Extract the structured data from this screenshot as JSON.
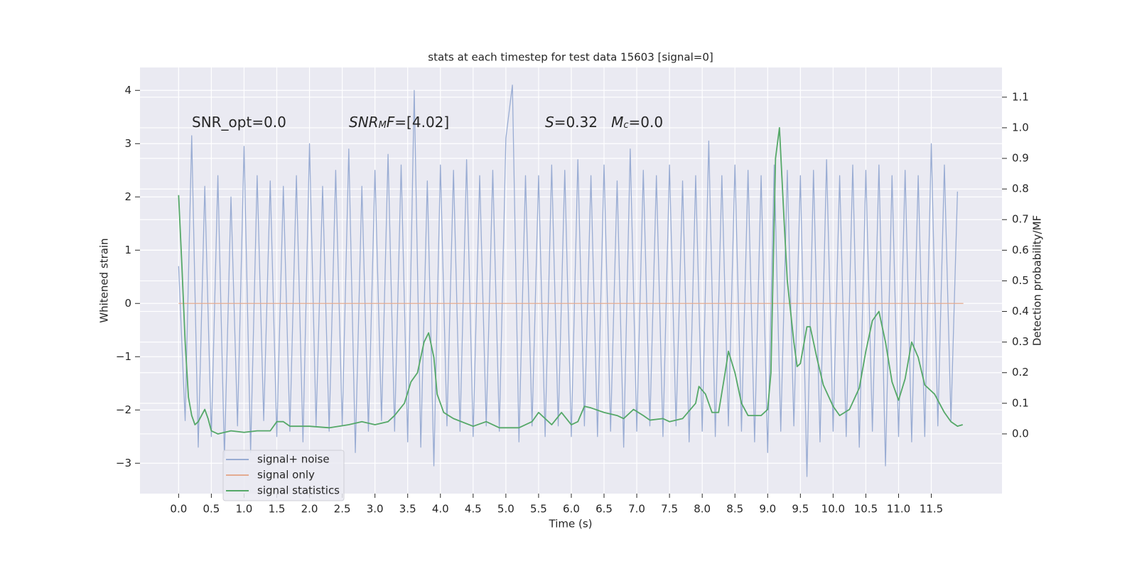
{
  "chart_data": {
    "type": "line",
    "title": "stats at each timestep for test data 15603 [signal=0]",
    "xlabel": "Time (s)",
    "ylabel": "Whitened strain",
    "y2label": "Detection probability/MF",
    "background": "#eaeaf2",
    "grid": true,
    "legend": "lower left",
    "xlim": [
      -0.59,
      12.58
    ],
    "ylim": [
      -3.57,
      4.43
    ],
    "y2lim": [
      -0.195,
      1.197
    ],
    "xticks": [
      {
        "value": 0,
        "label": "0.0"
      },
      {
        "value": 0.5,
        "label": "0.5"
      },
      {
        "value": 1,
        "label": "1.0"
      },
      {
        "value": 1.5,
        "label": "1.5"
      },
      {
        "value": 2,
        "label": "2.0"
      },
      {
        "value": 2.5,
        "label": "2.5"
      },
      {
        "value": 3,
        "label": "3.0"
      },
      {
        "value": 3.5,
        "label": "3.5"
      },
      {
        "value": 4,
        "label": "4.0"
      },
      {
        "value": 4.5,
        "label": "4.5"
      },
      {
        "value": 5,
        "label": "5.0"
      },
      {
        "value": 5.5,
        "label": "5.5"
      },
      {
        "value": 6,
        "label": "6.0"
      },
      {
        "value": 6.5,
        "label": "6.5"
      },
      {
        "value": 7,
        "label": "7.0"
      },
      {
        "value": 7.5,
        "label": "7.5"
      },
      {
        "value": 8,
        "label": "8.0"
      },
      {
        "value": 8.5,
        "label": "8.5"
      },
      {
        "value": 9,
        "label": "9.0"
      },
      {
        "value": 9.5,
        "label": "9.5"
      },
      {
        "value": 10,
        "label": "10.0"
      },
      {
        "value": 10.5,
        "label": "10.5"
      },
      {
        "value": 11,
        "label": "11.0"
      },
      {
        "value": 11.5,
        "label": "11.5"
      }
    ],
    "yticks": [
      {
        "value": -3,
        "label": "−3"
      },
      {
        "value": -2,
        "label": "−2"
      },
      {
        "value": -1,
        "label": "−1"
      },
      0,
      1,
      2,
      3,
      4
    ],
    "y2ticks": [
      {
        "value": 0,
        "label": "0.0"
      },
      {
        "value": 0.1,
        "label": "0.1"
      },
      {
        "value": 0.2,
        "label": "0.2"
      },
      {
        "value": 0.3,
        "label": "0.3"
      },
      {
        "value": 0.4,
        "label": "0.4"
      },
      {
        "value": 0.5,
        "label": "0.5"
      },
      {
        "value": 0.6,
        "label": "0.6"
      },
      {
        "value": 0.7,
        "label": "0.7"
      },
      {
        "value": 0.8,
        "label": "0.8"
      },
      {
        "value": 0.9,
        "label": "0.9"
      },
      {
        "value": 1,
        "label": "1.0"
      },
      {
        "value": 1.1,
        "label": "1.1"
      }
    ],
    "annotations": [
      {
        "segments": [
          {
            "text": "SNR_opt=0.0",
            "style": "normal"
          }
        ]
      },
      {
        "segments": [
          {
            "text": "SNR",
            "style": "italic"
          },
          {
            "text": "M",
            "style": "sub"
          },
          {
            "text": "F",
            "style": "italic"
          },
          {
            "text": "=[4.02]",
            "style": "normal"
          }
        ]
      },
      {
        "segments": [
          {
            "text": "S",
            "style": "italic"
          },
          {
            "text": "=0.32   ",
            "style": "normal"
          },
          {
            "text": "M",
            "style": "italic"
          },
          {
            "text": "c",
            "style": "sub"
          },
          {
            "text": "=0.0",
            "style": "normal"
          }
        ]
      }
    ],
    "series": [
      {
        "name": "signal+ noise",
        "color": "#99acd3",
        "axis": "y",
        "x": [
          0.0,
          0.1,
          0.2,
          0.3,
          0.4,
          0.5,
          0.6,
          0.7,
          0.8,
          0.9,
          1.0,
          1.1,
          1.2,
          1.3,
          1.4,
          1.5,
          1.6,
          1.7,
          1.8,
          1.9,
          2.0,
          2.1,
          2.2,
          2.3,
          2.4,
          2.5,
          2.6,
          2.7,
          2.8,
          2.9,
          3.0,
          3.1,
          3.2,
          3.3,
          3.4,
          3.5,
          3.6,
          3.7,
          3.8,
          3.9,
          4.0,
          4.1,
          4.2,
          4.3,
          4.4,
          4.5,
          4.6,
          4.7,
          4.8,
          4.9,
          5.0,
          5.1,
          5.2,
          5.3,
          5.4,
          5.5,
          5.6,
          5.7,
          5.8,
          5.9,
          6.0,
          6.1,
          6.2,
          6.3,
          6.4,
          6.5,
          6.6,
          6.7,
          6.8,
          6.9,
          7.0,
          7.1,
          7.2,
          7.3,
          7.4,
          7.5,
          7.6,
          7.7,
          7.8,
          7.9,
          8.0,
          8.1,
          8.2,
          8.3,
          8.4,
          8.5,
          8.6,
          8.7,
          8.8,
          8.9,
          9.0,
          9.1,
          9.2,
          9.3,
          9.4,
          9.5,
          9.6,
          9.7,
          9.8,
          9.9,
          10.0,
          10.1,
          10.2,
          10.3,
          10.4,
          10.5,
          10.6,
          10.7,
          10.8,
          10.9,
          11.0,
          11.1,
          11.2,
          11.3,
          11.4,
          11.5,
          11.6,
          11.7,
          11.8,
          11.9
        ],
        "values": [
          0.7,
          -2.2,
          3.15,
          -2.7,
          2.2,
          -2.5,
          2.4,
          -2.9,
          2.0,
          -2.3,
          2.95,
          -2.8,
          2.4,
          -2.2,
          2.3,
          -2.5,
          2.2,
          -2.4,
          2.4,
          -2.6,
          3.0,
          -2.3,
          2.2,
          -2.4,
          2.5,
          -2.3,
          2.9,
          -2.8,
          2.2,
          -2.4,
          2.5,
          -2.2,
          2.8,
          -2.4,
          2.6,
          -2.6,
          4.0,
          -2.7,
          2.3,
          -3.05,
          2.6,
          -2.3,
          2.5,
          -2.4,
          2.7,
          -2.5,
          2.4,
          -2.3,
          2.5,
          -2.4,
          3.1,
          4.1,
          -2.6,
          2.4,
          -2.3,
          2.4,
          -2.5,
          2.6,
          -2.3,
          2.5,
          -2.5,
          2.7,
          -2.3,
          2.4,
          -2.5,
          2.6,
          -2.4,
          2.3,
          -2.7,
          2.9,
          -2.4,
          2.5,
          -2.3,
          2.4,
          -2.5,
          2.6,
          -2.3,
          2.3,
          -2.6,
          2.4,
          -2.4,
          3.05,
          -2.5,
          2.4,
          -2.3,
          2.6,
          -2.4,
          2.5,
          -2.6,
          2.4,
          -2.8,
          2.6,
          -2.4,
          2.5,
          -2.3,
          2.4,
          -3.25,
          2.5,
          -2.6,
          2.7,
          -2.4,
          2.4,
          -2.5,
          2.6,
          -2.7,
          2.5,
          -2.4,
          2.6,
          -3.05,
          2.4,
          -2.5,
          2.5,
          -2.6,
          2.4,
          -2.5,
          3.0,
          -2.3,
          2.6,
          -2.2,
          2.1
        ]
      },
      {
        "name": "signal only",
        "color": "#e4ab91",
        "axis": "y",
        "x": [
          0.0,
          11.99
        ],
        "values": [
          0,
          0
        ]
      },
      {
        "name": "signal statistics",
        "color": "#55a868",
        "axis": "y2",
        "x": [
          0.0,
          0.05,
          0.1,
          0.15,
          0.2,
          0.25,
          0.3,
          0.4,
          0.45,
          0.5,
          0.6,
          0.8,
          1.0,
          1.2,
          1.4,
          1.5,
          1.6,
          1.7,
          2.0,
          2.3,
          2.6,
          2.8,
          3.0,
          3.2,
          3.3,
          3.45,
          3.55,
          3.65,
          3.75,
          3.82,
          3.9,
          3.95,
          4.05,
          4.2,
          4.5,
          4.7,
          4.9,
          5.2,
          5.4,
          5.5,
          5.6,
          5.7,
          5.85,
          6.0,
          6.1,
          6.2,
          6.3,
          6.5,
          6.7,
          6.8,
          6.95,
          7.1,
          7.2,
          7.4,
          7.5,
          7.7,
          7.9,
          7.95,
          8.05,
          8.15,
          8.25,
          8.35,
          8.4,
          8.5,
          8.6,
          8.7,
          8.9,
          9.0,
          9.05,
          9.12,
          9.18,
          9.25,
          9.3,
          9.4,
          9.45,
          9.5,
          9.6,
          9.65,
          9.75,
          9.85,
          10.0,
          10.1,
          10.25,
          10.4,
          10.5,
          10.6,
          10.7,
          10.8,
          10.9,
          11.0,
          11.1,
          11.2,
          11.3,
          11.4,
          11.55,
          11.7,
          11.8,
          11.9,
          11.98
        ],
        "values": [
          0.78,
          0.55,
          0.3,
          0.12,
          0.06,
          0.03,
          0.04,
          0.08,
          0.05,
          0.01,
          0.0,
          0.01,
          0.005,
          0.01,
          0.01,
          0.04,
          0.04,
          0.025,
          0.025,
          0.02,
          0.03,
          0.04,
          0.03,
          0.04,
          0.06,
          0.1,
          0.17,
          0.2,
          0.3,
          0.33,
          0.25,
          0.13,
          0.07,
          0.05,
          0.025,
          0.04,
          0.02,
          0.02,
          0.04,
          0.07,
          0.05,
          0.03,
          0.07,
          0.03,
          0.04,
          0.09,
          0.085,
          0.07,
          0.06,
          0.05,
          0.08,
          0.06,
          0.045,
          0.05,
          0.04,
          0.05,
          0.1,
          0.155,
          0.13,
          0.07,
          0.07,
          0.2,
          0.27,
          0.2,
          0.1,
          0.06,
          0.06,
          0.08,
          0.2,
          0.9,
          1.0,
          0.7,
          0.5,
          0.3,
          0.22,
          0.23,
          0.35,
          0.35,
          0.25,
          0.16,
          0.09,
          0.06,
          0.08,
          0.15,
          0.27,
          0.37,
          0.4,
          0.3,
          0.17,
          0.11,
          0.18,
          0.3,
          0.25,
          0.16,
          0.13,
          0.07,
          0.04,
          0.025,
          0.03
        ]
      }
    ]
  }
}
